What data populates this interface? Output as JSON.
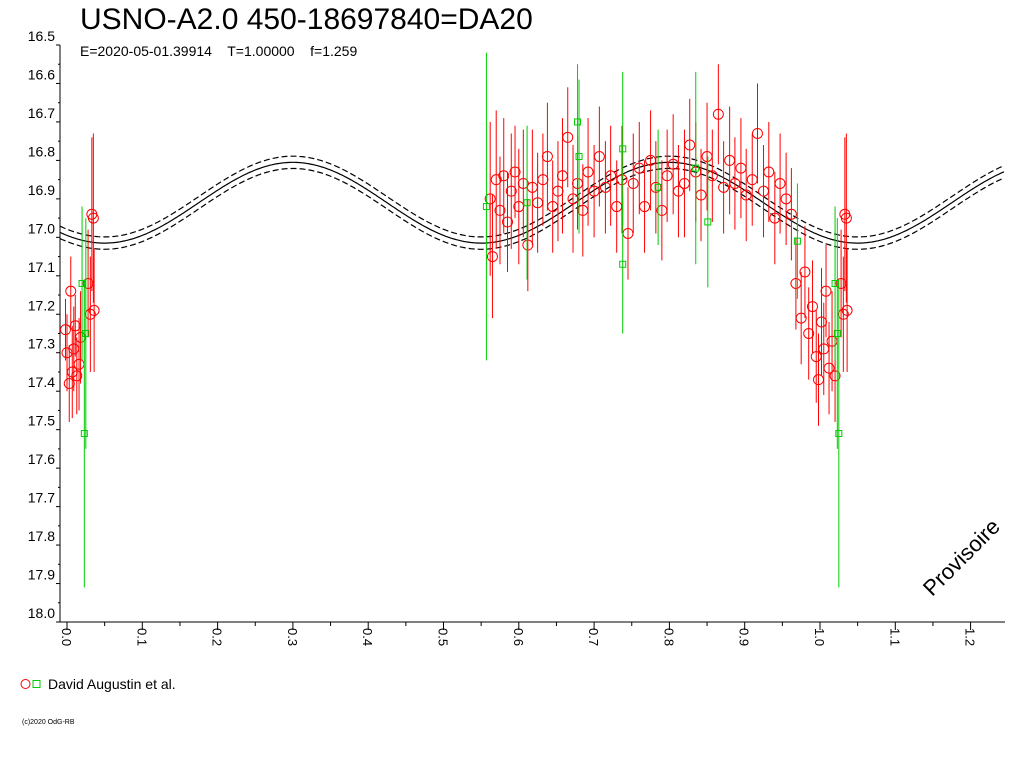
{
  "chart_data": {
    "type": "scatter",
    "title": "USNO-A2.0 450-18697840=DA20",
    "subtitle": "E=2020-05-01.39914    T=1.00000    f=1.259",
    "xlabel": "",
    "ylabel": "",
    "xlim": [
      0.0,
      1.25
    ],
    "ylim": [
      18.0,
      16.5
    ],
    "y_inverted": true,
    "x_ticks": [
      "0.0",
      "0.1",
      "0.2",
      "0.3",
      "0.4",
      "0.5",
      "0.6",
      "0.7",
      "0.8",
      "0.9",
      "1.0",
      "1.1",
      "1.2"
    ],
    "y_ticks": [
      "16.5",
      "16.6",
      "16.7",
      "16.8",
      "16.9",
      "17.0",
      "17.1",
      "17.2",
      "17.3",
      "17.4",
      "17.5",
      "17.6",
      "17.7",
      "17.8",
      "17.9",
      "18.0"
    ],
    "grid": false,
    "legend_position": "bottom-left",
    "legend": [
      "David Augustin et al."
    ],
    "watermark": "Provisoire",
    "copyright": "(c)2020 OdG-RB",
    "colors": {
      "red_series": "#ff0000",
      "green_series": "#00cc00",
      "axes": "#000000",
      "model": "#000000"
    },
    "model_curve": {
      "description": "sinusoid with dashed envelope",
      "mean": 16.91,
      "amplitude": 0.105,
      "period": 0.5,
      "minimum_phase": 0.05,
      "envelope_offset": 0.016
    },
    "series": [
      {
        "name": "David Augustin et al.",
        "marker": "circle",
        "color": "#ff0000",
        "points": [
          [
            -0.002,
            17.24,
            0.08
          ],
          [
            0.0,
            17.3,
            0.1
          ],
          [
            0.003,
            17.38,
            0.1
          ],
          [
            0.005,
            17.14,
            0.09
          ],
          [
            0.007,
            17.35,
            0.12
          ],
          [
            0.009,
            17.29,
            0.11
          ],
          [
            0.011,
            17.23,
            0.08
          ],
          [
            0.013,
            17.36,
            0.1
          ],
          [
            0.016,
            17.33,
            0.12
          ],
          [
            0.018,
            17.26,
            0.12
          ],
          [
            0.028,
            17.12,
            0.14
          ],
          [
            0.031,
            17.2,
            0.15
          ],
          [
            0.033,
            16.94,
            0.2
          ],
          [
            0.035,
            16.95,
            0.22
          ],
          [
            0.036,
            17.19,
            0.16
          ],
          [
            0.562,
            16.9,
            0.2
          ],
          [
            0.565,
            17.05,
            0.16
          ],
          [
            0.57,
            16.85,
            0.18
          ],
          [
            0.575,
            16.93,
            0.14
          ],
          [
            0.58,
            16.84,
            0.15
          ],
          [
            0.585,
            16.96,
            0.13
          ],
          [
            0.59,
            16.88,
            0.15
          ],
          [
            0.595,
            16.83,
            0.12
          ],
          [
            0.6,
            16.92,
            0.15
          ],
          [
            0.606,
            16.86,
            0.14
          ],
          [
            0.612,
            17.02,
            0.12
          ],
          [
            0.618,
            16.87,
            0.15
          ],
          [
            0.625,
            16.91,
            0.13
          ],
          [
            0.632,
            16.85,
            0.12
          ],
          [
            0.638,
            16.79,
            0.14
          ],
          [
            0.645,
            16.92,
            0.12
          ],
          [
            0.652,
            16.88,
            0.13
          ],
          [
            0.658,
            16.84,
            0.15
          ],
          [
            0.665,
            16.74,
            0.13
          ],
          [
            0.672,
            16.9,
            0.14
          ],
          [
            0.678,
            16.86,
            0.12
          ],
          [
            0.685,
            16.93,
            0.12
          ],
          [
            0.692,
            16.83,
            0.14
          ],
          [
            0.7,
            16.88,
            0.12
          ],
          [
            0.707,
            16.79,
            0.13
          ],
          [
            0.715,
            16.87,
            0.12
          ],
          [
            0.722,
            16.84,
            0.13
          ],
          [
            0.73,
            16.92,
            0.12
          ],
          [
            0.737,
            16.85,
            0.14
          ],
          [
            0.745,
            16.99,
            0.12
          ],
          [
            0.752,
            16.86,
            0.13
          ],
          [
            0.76,
            16.82,
            0.12
          ],
          [
            0.767,
            16.92,
            0.12
          ],
          [
            0.775,
            16.8,
            0.13
          ],
          [
            0.782,
            16.87,
            0.12
          ],
          [
            0.79,
            16.93,
            0.13
          ],
          [
            0.797,
            16.84,
            0.12
          ],
          [
            0.805,
            16.81,
            0.13
          ],
          [
            0.812,
            16.88,
            0.12
          ],
          [
            0.82,
            16.86,
            0.14
          ],
          [
            0.827,
            16.76,
            0.12
          ],
          [
            0.835,
            16.83,
            0.13
          ],
          [
            0.842,
            16.89,
            0.12
          ],
          [
            0.85,
            16.79,
            0.14
          ],
          [
            0.857,
            16.84,
            0.12
          ],
          [
            0.865,
            16.68,
            0.13
          ],
          [
            0.872,
            16.87,
            0.12
          ],
          [
            0.88,
            16.8,
            0.14
          ],
          [
            0.887,
            16.86,
            0.12
          ],
          [
            0.895,
            16.82,
            0.13
          ],
          [
            0.902,
            16.89,
            0.12
          ],
          [
            0.91,
            16.85,
            0.12
          ],
          [
            0.917,
            16.73,
            0.13
          ],
          [
            0.925,
            16.88,
            0.12
          ],
          [
            0.932,
            16.83,
            0.13
          ],
          [
            0.94,
            16.95,
            0.12
          ],
          [
            0.947,
            16.86,
            0.13
          ],
          [
            0.955,
            16.9,
            0.12
          ],
          [
            0.962,
            16.94,
            0.12
          ],
          [
            0.968,
            17.12,
            0.12
          ],
          [
            0.975,
            17.21,
            0.12
          ],
          [
            0.98,
            17.09,
            0.12
          ],
          [
            0.985,
            17.25,
            0.12
          ],
          [
            0.99,
            17.18,
            0.12
          ],
          [
            0.995,
            17.31,
            0.12
          ],
          [
            0.998,
            17.37,
            0.12
          ],
          [
            1.002,
            17.22,
            0.14
          ],
          [
            1.005,
            17.29,
            0.12
          ],
          [
            1.008,
            17.14,
            0.12
          ],
          [
            1.012,
            17.34,
            0.12
          ],
          [
            1.016,
            17.27,
            0.13
          ],
          [
            1.02,
            17.36,
            0.12
          ],
          [
            1.028,
            17.12,
            0.14
          ],
          [
            1.031,
            17.2,
            0.15
          ],
          [
            1.033,
            16.94,
            0.2
          ],
          [
            1.035,
            16.95,
            0.22
          ],
          [
            1.036,
            17.19,
            0.16
          ]
        ]
      },
      {
        "name": "",
        "marker": "square",
        "color": "#00cc00",
        "points": [
          [
            0.025,
            17.25,
            0.3
          ],
          [
            0.023,
            17.51,
            0.4
          ],
          [
            0.02,
            17.12,
            0.2
          ],
          [
            0.557,
            16.92,
            0.4
          ],
          [
            0.611,
            16.91,
            0.2
          ],
          [
            0.678,
            16.7,
            0.15
          ],
          [
            0.68,
            16.79,
            0.2
          ],
          [
            0.738,
            16.77,
            0.2
          ],
          [
            0.738,
            17.07,
            0.18
          ],
          [
            0.785,
            16.87,
            0.15
          ],
          [
            0.835,
            16.82,
            0.25
          ],
          [
            0.851,
            16.96,
            0.17
          ],
          [
            0.97,
            17.01,
            0.15
          ],
          [
            1.023,
            17.25,
            0.3
          ],
          [
            1.025,
            17.51,
            0.4
          ],
          [
            1.02,
            17.12,
            0.2
          ]
        ]
      }
    ]
  }
}
